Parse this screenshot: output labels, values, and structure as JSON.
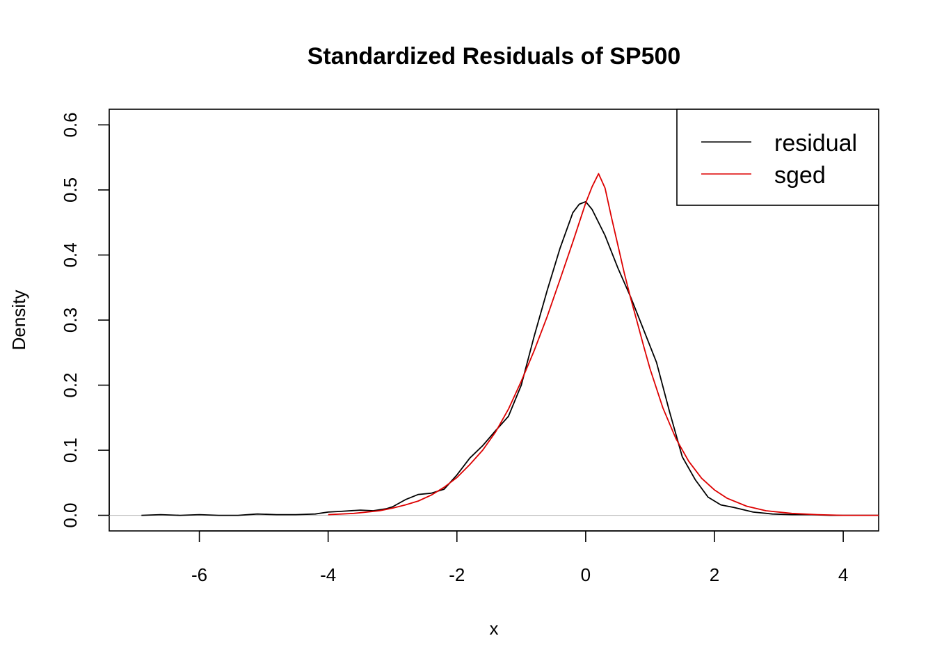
{
  "chart_data": {
    "type": "line",
    "title": "Standardized Residuals of SP500",
    "xlabel": "x",
    "ylabel": "Density",
    "xlim": [
      -7.4,
      4.55
    ],
    "ylim": [
      -0.024,
      0.624
    ],
    "xticks": [
      -6,
      -4,
      -2,
      0,
      2,
      4
    ],
    "yticks": [
      0.0,
      0.1,
      0.2,
      0.3,
      0.4,
      0.5,
      0.6
    ],
    "xtick_labels": [
      "-6",
      "-4",
      "-2",
      "0",
      "2",
      "4"
    ],
    "ytick_labels": [
      "0.0",
      "0.1",
      "0.2",
      "0.3",
      "0.4",
      "0.5",
      "0.6"
    ],
    "grid": false,
    "baseline": 0,
    "legend": {
      "position": "top-right",
      "entries": [
        "residual",
        "sged"
      ]
    },
    "series": [
      {
        "name": "residual",
        "color": "#000000",
        "x": [
          -6.9,
          -6.6,
          -6.3,
          -6.0,
          -5.7,
          -5.4,
          -5.1,
          -4.8,
          -4.5,
          -4.2,
          -4.0,
          -3.8,
          -3.5,
          -3.3,
          -3.1,
          -3.0,
          -2.8,
          -2.6,
          -2.4,
          -2.2,
          -2.0,
          -1.8,
          -1.6,
          -1.4,
          -1.2,
          -1.0,
          -0.8,
          -0.6,
          -0.4,
          -0.2,
          -0.1,
          0.0,
          0.1,
          0.3,
          0.5,
          0.7,
          0.9,
          1.1,
          1.3,
          1.5,
          1.7,
          1.9,
          2.1,
          2.3,
          2.6,
          2.9,
          3.2,
          3.5,
          3.8,
          4.2,
          4.55
        ],
        "y": [
          0.0,
          0.001,
          0.0,
          0.001,
          0.0,
          0.0,
          0.002,
          0.001,
          0.001,
          0.002,
          0.005,
          0.006,
          0.008,
          0.007,
          0.01,
          0.013,
          0.024,
          0.032,
          0.034,
          0.04,
          0.062,
          0.088,
          0.107,
          0.13,
          0.152,
          0.2,
          0.275,
          0.345,
          0.41,
          0.465,
          0.478,
          0.482,
          0.47,
          0.43,
          0.38,
          0.335,
          0.285,
          0.235,
          0.16,
          0.09,
          0.055,
          0.028,
          0.016,
          0.012,
          0.005,
          0.002,
          0.001,
          0.001,
          0.0,
          0.0,
          0.0
        ]
      },
      {
        "name": "sged",
        "color": "#dd0000",
        "x": [
          -4.0,
          -3.6,
          -3.2,
          -3.0,
          -2.8,
          -2.6,
          -2.4,
          -2.2,
          -2.0,
          -1.8,
          -1.6,
          -1.4,
          -1.2,
          -1.0,
          -0.8,
          -0.6,
          -0.4,
          -0.2,
          0.0,
          0.1,
          0.2,
          0.3,
          0.4,
          0.5,
          0.6,
          0.7,
          0.8,
          0.9,
          1.0,
          1.2,
          1.4,
          1.6,
          1.8,
          2.0,
          2.2,
          2.5,
          2.8,
          3.2,
          3.6,
          4.0,
          4.55
        ],
        "y": [
          0.001,
          0.003,
          0.007,
          0.011,
          0.016,
          0.022,
          0.031,
          0.043,
          0.058,
          0.078,
          0.1,
          0.128,
          0.163,
          0.206,
          0.253,
          0.305,
          0.362,
          0.42,
          0.48,
          0.505,
          0.525,
          0.503,
          0.458,
          0.415,
          0.372,
          0.333,
          0.297,
          0.26,
          0.225,
          0.165,
          0.118,
          0.083,
          0.057,
          0.039,
          0.026,
          0.014,
          0.007,
          0.003,
          0.001,
          0.0,
          0.0
        ]
      }
    ]
  }
}
